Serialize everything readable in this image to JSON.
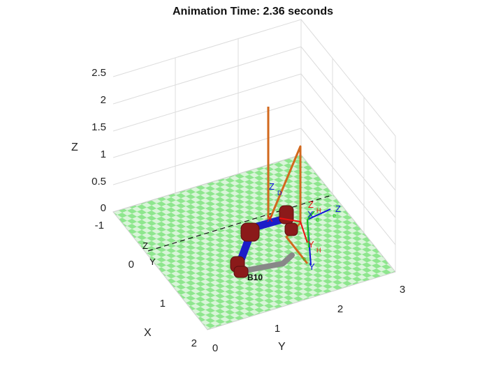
{
  "figure": {
    "title": "Animation Time: 2.36 seconds",
    "axes": {
      "x_label": "X",
      "y_label": "Y",
      "z_label": "Z",
      "x_ticks": [
        "-1",
        "0",
        "1",
        "2"
      ],
      "y_ticks": [
        "0",
        "1",
        "2",
        "3"
      ],
      "z_ticks": [
        "0",
        "0.5",
        "1",
        "1.5",
        "2",
        "2.5"
      ],
      "grid": true,
      "box": "3d"
    },
    "floor": {
      "pattern": "checkerboard",
      "colors": [
        "#8ee68e",
        "#d9f5d9"
      ]
    },
    "robot": {
      "joint_color": "#8b1a1a",
      "link_color": "#1c1cc8",
      "base_link_color": "#888888",
      "label": "B10"
    },
    "trajectory": {
      "color": "#d2691e"
    },
    "frame_labels": {
      "zd_main": "Z",
      "zd_sub": "D",
      "x_red": "X",
      "y_red": "Y",
      "y_red_sub": "H",
      "z_red": "Z",
      "z_red_sub": "H",
      "x_blue": "X",
      "x_blue_sub": "e",
      "y_blue": "Y",
      "y_blue_sub": "e",
      "z_blue": "Z",
      "z_blue_sub": "e",
      "z_black": "Z",
      "y_black": "Y"
    },
    "colors": {
      "red_frame": "#e11",
      "green_frame": "#1ec81e",
      "blue_frame": "#1111dd"
    }
  }
}
